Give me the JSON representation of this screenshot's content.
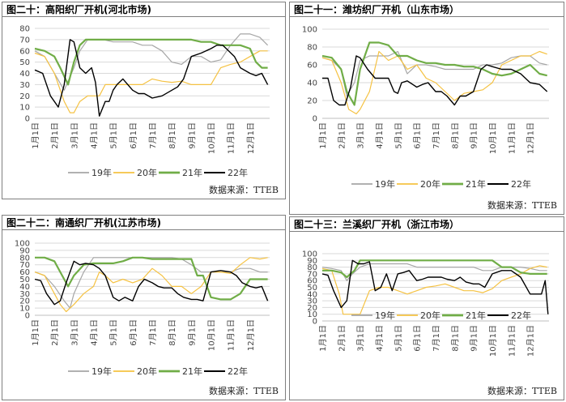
{
  "source_label": "数据来源：TTEB",
  "colors": {
    "19年": "#a6a6a6",
    "20年": "#f5c242",
    "21年": "#70ad47",
    "22年": "#000000"
  },
  "chart_data": [
    {
      "type": "line",
      "title": "图二十：高阳织厂开机(河北市场)",
      "ylim": [
        0,
        80
      ],
      "yticks": [
        0,
        10,
        20,
        30,
        40,
        50,
        60,
        70,
        80
      ],
      "categories": [
        "1月1日",
        "2月1日",
        "3月1日",
        "4月1日",
        "5月1日",
        "6月1日",
        "7月1日",
        "8月1日",
        "9月1日",
        "10月1日",
        "11月1日",
        "12月1日"
      ],
      "legend": [
        "19年",
        "20年",
        "21年",
        "22年"
      ],
      "series": [
        {
          "name": "19年",
          "x": [
            0,
            0.5,
            1,
            1.5,
            2,
            2.3,
            2.7,
            3,
            3.5,
            4,
            4.5,
            5,
            5.5,
            6,
            6.5,
            7,
            7.5,
            8,
            8.5,
            9,
            9.5,
            10,
            10.5,
            11,
            11.5,
            11.9
          ],
          "values": [
            60,
            55,
            40,
            25,
            45,
            60,
            70,
            70,
            70,
            68,
            68,
            68,
            65,
            65,
            60,
            50,
            48,
            55,
            55,
            50,
            52,
            65,
            75,
            75,
            72,
            65
          ]
        },
        {
          "name": "20年",
          "x": [
            0,
            0.5,
            1,
            1.5,
            1.8,
            2,
            2.3,
            2.7,
            3,
            3.3,
            3.6,
            4,
            4.5,
            5,
            5.5,
            6,
            6.5,
            7,
            7.5,
            8,
            8.5,
            9,
            9.5,
            10,
            10.5,
            11,
            11.5,
            11.9
          ],
          "values": [
            58,
            55,
            40,
            15,
            5,
            5,
            15,
            20,
            20,
            20,
            30,
            30,
            30,
            30,
            30,
            35,
            33,
            32,
            33,
            30,
            30,
            30,
            45,
            48,
            50,
            55,
            60,
            60
          ]
        },
        {
          "name": "21年",
          "x": [
            0,
            0.5,
            1,
            1.3,
            1.7,
            2,
            2.3,
            2.6,
            3,
            3.5,
            4,
            4.5,
            5,
            5.5,
            6,
            6.5,
            7,
            7.5,
            8,
            8.5,
            9,
            9.5,
            10,
            10.5,
            11,
            11.3,
            11.6,
            11.9
          ],
          "values": [
            62,
            60,
            55,
            45,
            30,
            50,
            65,
            70,
            70,
            70,
            70,
            70,
            70,
            70,
            70,
            70,
            70,
            70,
            70,
            68,
            68,
            65,
            65,
            65,
            62,
            50,
            45,
            45
          ]
        },
        {
          "name": "22年",
          "x": [
            0,
            0.4,
            0.8,
            1.2,
            1.5,
            1.8,
            2,
            2.3,
            2.6,
            2.9,
            3.1,
            3.3,
            3.6,
            3.8,
            4,
            4.2,
            4.5,
            5,
            5.3,
            5.6,
            6,
            6.5,
            7,
            7.3,
            7.6,
            8,
            8.5,
            9,
            9.3,
            9.6,
            9.9,
            10.2,
            10.5,
            11,
            11.3,
            11.6,
            11.9
          ],
          "values": [
            43,
            40,
            20,
            10,
            30,
            70,
            68,
            45,
            40,
            45,
            32,
            2,
            15,
            15,
            25,
            30,
            35,
            25,
            22,
            22,
            18,
            20,
            25,
            28,
            35,
            55,
            58,
            62,
            65,
            65,
            60,
            55,
            45,
            40,
            38,
            40,
            30
          ]
        }
      ]
    },
    {
      "type": "line",
      "title": "图二十一：潍坊织厂开机（山东市场）",
      "ylim": [
        0,
        100
      ],
      "yticks": [
        0,
        20,
        40,
        60,
        80,
        100
      ],
      "categories": [
        "1月1日",
        "2月1日",
        "3月1日",
        "4月1日",
        "5月1日",
        "6月1日",
        "7月1日",
        "8月1日",
        "9月1日",
        "10月1日",
        "11月1日",
        "12月1日"
      ],
      "legend": [
        "19年",
        "20年",
        "21年",
        "22年"
      ],
      "series": [
        {
          "name": "19年",
          "x": [
            0,
            0.5,
            1,
            1.3,
            1.7,
            2,
            2.5,
            3,
            3.5,
            4,
            4.5,
            5,
            5.5,
            6,
            6.5,
            7,
            7.5,
            8,
            8.5,
            9,
            9.5,
            10,
            10.5,
            11,
            11.5,
            11.9
          ],
          "values": [
            68,
            65,
            55,
            25,
            40,
            65,
            70,
            70,
            70,
            75,
            50,
            60,
            60,
            58,
            55,
            55,
            55,
            55,
            60,
            60,
            62,
            68,
            70,
            70,
            62,
            60
          ]
        },
        {
          "name": "20年",
          "x": [
            0,
            0.5,
            1,
            1.4,
            1.8,
            2,
            2.5,
            3,
            3.5,
            4,
            4.5,
            5,
            5.5,
            6,
            6.5,
            7,
            7.5,
            8,
            8.5,
            9,
            9.5,
            10,
            10.5,
            11,
            11.5,
            11.9
          ],
          "values": [
            68,
            65,
            40,
            10,
            5,
            10,
            30,
            75,
            65,
            70,
            55,
            60,
            45,
            40,
            30,
            20,
            28,
            30,
            32,
            40,
            60,
            65,
            70,
            70,
            75,
            72
          ]
        },
        {
          "name": "21年",
          "x": [
            0,
            0.5,
            1,
            1.3,
            1.7,
            2,
            2.5,
            3,
            3.5,
            4,
            4.5,
            5,
            5.5,
            6,
            6.5,
            7,
            7.5,
            8,
            8.5,
            9,
            9.5,
            10,
            10.5,
            11,
            11.5,
            11.9
          ],
          "values": [
            70,
            68,
            55,
            30,
            15,
            55,
            85,
            85,
            82,
            70,
            70,
            65,
            62,
            62,
            60,
            60,
            58,
            58,
            55,
            50,
            48,
            50,
            55,
            60,
            50,
            48
          ]
        },
        {
          "name": "22年",
          "x": [
            0,
            0.3,
            0.6,
            0.9,
            1.2,
            1.5,
            1.8,
            2,
            2.4,
            2.8,
            3.2,
            3.5,
            3.8,
            4,
            4.2,
            4.5,
            5,
            5.3,
            5.6,
            6,
            6.3,
            6.6,
            7,
            7.3,
            7.6,
            8,
            8.4,
            8.7,
            9,
            9.5,
            10,
            10.5,
            11,
            11.5,
            11.9
          ],
          "values": [
            45,
            45,
            20,
            15,
            15,
            35,
            70,
            68,
            55,
            45,
            45,
            45,
            30,
            28,
            40,
            42,
            35,
            38,
            40,
            30,
            30,
            25,
            15,
            25,
            25,
            30,
            55,
            60,
            58,
            55,
            55,
            50,
            40,
            38,
            30
          ]
        }
      ]
    },
    {
      "type": "line",
      "title": "图二十二：南通织厂开机(江苏市场)",
      "ylim": [
        0,
        100
      ],
      "yticks": [
        0,
        10,
        20,
        30,
        40,
        50,
        60,
        70,
        80,
        90,
        100
      ],
      "categories": [
        "1月1日",
        "2月1日",
        "3月1日",
        "4月1日",
        "5月1日",
        "6月1日",
        "7月1日",
        "8月1日",
        "9月1日",
        "10月1日",
        "11月1日",
        "12月1日"
      ],
      "legend": [
        "19年",
        "20年",
        "21年",
        "22年"
      ],
      "series": [
        {
          "name": "19年",
          "x": [
            0,
            0.5,
            1,
            1.5,
            1.8,
            2,
            2.5,
            3,
            3.5,
            4,
            4.5,
            5,
            5.5,
            6,
            6.5,
            7,
            7.5,
            8,
            8.5,
            9,
            9.5,
            10,
            10.5,
            11,
            11.5,
            11.9
          ],
          "values": [
            60,
            55,
            40,
            20,
            10,
            30,
            60,
            80,
            80,
            80,
            80,
            80,
            80,
            80,
            80,
            80,
            78,
            70,
            60,
            60,
            60,
            60,
            65,
            65,
            60,
            60
          ]
        },
        {
          "name": "20年",
          "x": [
            0,
            0.5,
            1,
            1.3,
            1.6,
            2,
            2.5,
            3,
            3.3,
            3.6,
            4,
            4.5,
            5,
            5.5,
            6,
            6.5,
            7,
            7.5,
            8,
            8.5,
            9,
            9.5,
            10,
            10.5,
            11,
            11.5,
            11.9
          ],
          "values": [
            60,
            55,
            30,
            15,
            5,
            15,
            30,
            40,
            60,
            55,
            45,
            50,
            45,
            50,
            65,
            55,
            40,
            40,
            30,
            40,
            60,
            60,
            58,
            70,
            80,
            78,
            80
          ]
        },
        {
          "name": "21年",
          "x": [
            0,
            0.5,
            1,
            1.3,
            1.7,
            2,
            2.5,
            3,
            3.5,
            4,
            4.5,
            5,
            5.5,
            6,
            6.5,
            7,
            7.5,
            8,
            8.3,
            8.6,
            9,
            9.5,
            10,
            10.5,
            11,
            11.5,
            11.9
          ],
          "values": [
            80,
            80,
            75,
            60,
            40,
            55,
            70,
            72,
            72,
            72,
            75,
            80,
            80,
            78,
            78,
            78,
            78,
            78,
            55,
            55,
            25,
            22,
            22,
            30,
            50,
            50,
            50
          ]
        },
        {
          "name": "22年",
          "x": [
            0,
            0.3,
            0.6,
            1,
            1.3,
            1.6,
            2,
            2.3,
            2.6,
            3,
            3.3,
            3.6,
            4,
            4.3,
            4.6,
            5,
            5.3,
            5.6,
            6,
            6.3,
            6.6,
            7,
            7.3,
            7.6,
            8,
            8.3,
            8.6,
            9,
            9.5,
            10,
            10.3,
            10.6,
            11,
            11.3,
            11.6,
            11.9
          ],
          "values": [
            50,
            48,
            30,
            15,
            20,
            45,
            75,
            70,
            72,
            70,
            65,
            55,
            25,
            20,
            25,
            20,
            40,
            50,
            45,
            40,
            38,
            38,
            30,
            25,
            22,
            22,
            20,
            60,
            62,
            60,
            55,
            45,
            40,
            38,
            40,
            20
          ]
        }
      ]
    },
    {
      "type": "line",
      "title": "图二十三：兰溪织厂开机（浙江市场）",
      "ylim": [
        0,
        100
      ],
      "yticks": [
        0,
        10,
        20,
        30,
        40,
        50,
        60,
        70,
        80,
        90,
        100
      ],
      "categories": [
        "1月1日",
        "2月1日",
        "3月1日",
        "4月1日",
        "5月1日",
        "6月1日",
        "7月1日",
        "8月1日",
        "9月1日",
        "10月1日",
        "11月1日",
        "12月1日"
      ],
      "legend": [
        "19年",
        "20年",
        "21年",
        "22年"
      ],
      "series": [
        {
          "name": "19年",
          "x": [
            0,
            0.5,
            1,
            1.3,
            1.6,
            2,
            2.5,
            3,
            3.5,
            4,
            4.5,
            5,
            5.5,
            6,
            6.5,
            7,
            7.5,
            8,
            8.5,
            9,
            9.5,
            10,
            10.5,
            11,
            11.5,
            11.9
          ],
          "values": [
            80,
            78,
            75,
            60,
            70,
            80,
            85,
            85,
            85,
            85,
            85,
            80,
            80,
            80,
            80,
            80,
            80,
            80,
            75,
            75,
            80,
            80,
            80,
            78,
            75,
            75
          ]
        },
        {
          "name": "20年",
          "x": [
            0,
            0.5,
            0.9,
            1.1,
            1.5,
            2,
            2.5,
            3,
            3.5,
            4,
            4.5,
            5,
            5.5,
            6,
            6.5,
            7,
            7.5,
            8,
            8.5,
            9,
            9.5,
            10,
            10.5,
            11,
            11.5,
            11.9
          ],
          "values": [
            78,
            75,
            40,
            10,
            10,
            10,
            45,
            50,
            50,
            45,
            40,
            45,
            50,
            52,
            55,
            50,
            45,
            45,
            42,
            48,
            60,
            65,
            70,
            78,
            82,
            80
          ]
        },
        {
          "name": "21年",
          "x": [
            0,
            0.5,
            1,
            1.3,
            1.7,
            2,
            2.5,
            3,
            3.5,
            4,
            4.5,
            5,
            5.5,
            6,
            6.5,
            7,
            7.5,
            8,
            8.5,
            9,
            9.5,
            10,
            10.5,
            11,
            11.5,
            11.9
          ],
          "values": [
            75,
            75,
            72,
            65,
            75,
            90,
            90,
            90,
            90,
            90,
            90,
            90,
            90,
            90,
            90,
            90,
            90,
            90,
            90,
            90,
            80,
            80,
            72,
            70,
            70,
            70
          ]
        },
        {
          "name": "22年",
          "x": [
            0,
            0.3,
            0.6,
            1,
            1.3,
            1.6,
            1.9,
            2.2,
            2.5,
            2.8,
            3.1,
            3.4,
            3.7,
            4,
            4.3,
            4.6,
            5,
            5.3,
            5.6,
            6,
            6.3,
            6.6,
            7,
            7.3,
            7.6,
            8,
            8.3,
            8.6,
            9,
            9.5,
            10,
            10.5,
            11,
            11.3,
            11.6,
            11.8,
            11.95
          ],
          "values": [
            70,
            68,
            45,
            20,
            30,
            90,
            85,
            85,
            88,
            45,
            50,
            70,
            45,
            70,
            72,
            75,
            60,
            62,
            65,
            65,
            65,
            62,
            60,
            65,
            58,
            55,
            55,
            50,
            70,
            75,
            75,
            65,
            40,
            40,
            40,
            60,
            10
          ]
        }
      ]
    }
  ]
}
